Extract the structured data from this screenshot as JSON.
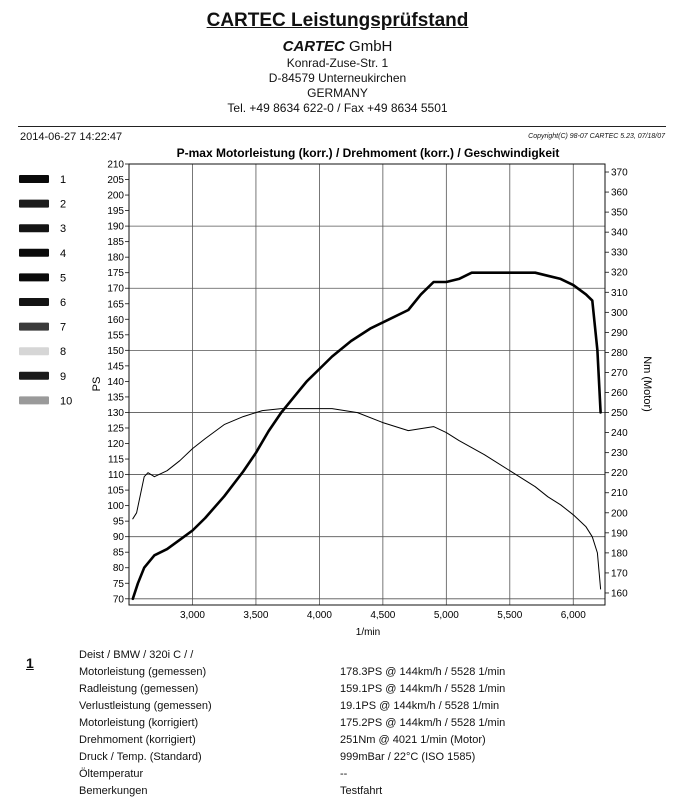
{
  "header": {
    "title": "CARTEC Leistungsprüfstand",
    "company_bold": "CARTEC",
    "company_rest": "GmbH",
    "street": "Konrad-Zuse-Str. 1",
    "city": "D-84579 Unterneukirchen",
    "country": "GERMANY",
    "phone": "Tel. +49 8634  622-0 / Fax +49 8634 5501"
  },
  "meta": {
    "datetime": "2014-06-27 14:22:47",
    "copyright": "Copyright(C) 98-07 CARTEC 5.23, 07/18/07"
  },
  "chart_data": {
    "type": "line",
    "title": "P-max Motorleistung (korr.) / Drehmoment (korr.) / Geschwindigkeit",
    "xlabel": "1/min",
    "ylabel_left": "PS",
    "ylabel_right": "Nm (Motor)",
    "xlim": [
      2500,
      6250
    ],
    "ylim_left": [
      68,
      210
    ],
    "ylim_right": [
      154,
      374
    ],
    "x_ticks": [
      3000,
      3500,
      4000,
      4500,
      5000,
      5500,
      6000
    ],
    "x_tick_labels": [
      "3,000",
      "3,500",
      "4,000",
      "4,500",
      "5,000",
      "5,500",
      "6,000"
    ],
    "y_left_ticks": [
      70,
      75,
      80,
      85,
      90,
      95,
      100,
      105,
      110,
      115,
      120,
      125,
      130,
      135,
      140,
      145,
      150,
      155,
      160,
      165,
      170,
      175,
      180,
      185,
      190,
      195,
      200,
      205,
      210
    ],
    "y_right_ticks": [
      160,
      170,
      180,
      190,
      200,
      210,
      220,
      230,
      240,
      250,
      260,
      270,
      280,
      290,
      300,
      310,
      320,
      330,
      340,
      350,
      360,
      370
    ],
    "legend": [
      {
        "label": "1",
        "color": "#0a0a0a"
      },
      {
        "label": "2",
        "color": "#1c1c1c"
      },
      {
        "label": "3",
        "color": "#141414"
      },
      {
        "label": "4",
        "color": "#0a0a0a"
      },
      {
        "label": "5",
        "color": "#0a0a0a"
      },
      {
        "label": "6",
        "color": "#141414"
      },
      {
        "label": "7",
        "color": "#3a3a3a"
      },
      {
        "label": "8",
        "color": "#d6d6d6"
      },
      {
        "label": "9",
        "color": "#1a1a1a"
      },
      {
        "label": "10",
        "color": "#9a9a9a"
      }
    ],
    "series": [
      {
        "name": "Motorleistung (korr.)",
        "axis": "left",
        "x": [
          2530,
          2570,
          2620,
          2700,
          2800,
          2900,
          3000,
          3100,
          3250,
          3400,
          3500,
          3600,
          3700,
          3800,
          3900,
          4000,
          4100,
          4250,
          4400,
          4550,
          4700,
          4800,
          4850,
          4900,
          4950,
          5000,
          5100,
          5200,
          5300,
          5400,
          5500,
          5600,
          5700,
          5800,
          5900,
          6000,
          6100,
          6150,
          6190,
          6215
        ],
        "values": [
          70,
          75,
          80,
          84,
          86,
          89,
          92,
          96,
          103,
          111,
          117,
          124,
          130,
          135,
          140,
          144,
          148,
          153,
          157,
          160,
          163,
          168,
          170,
          172,
          172,
          172,
          173,
          175,
          175,
          175,
          175,
          175,
          175,
          174,
          173,
          171,
          168,
          166,
          150,
          130
        ]
      },
      {
        "name": "Drehmoment (korr.)",
        "axis": "right",
        "x": [
          2530,
          2560,
          2620,
          2650,
          2700,
          2800,
          2900,
          3000,
          3100,
          3250,
          3400,
          3550,
          3700,
          3850,
          4000,
          4100,
          4300,
          4500,
          4700,
          4800,
          4900,
          5000,
          5100,
          5300,
          5500,
          5700,
          5800,
          5900,
          6000,
          6100,
          6150,
          6190,
          6215
        ],
        "values": [
          197,
          200,
          218,
          220,
          218,
          221,
          226,
          232,
          237,
          244,
          248,
          251,
          252,
          252,
          252,
          252,
          250,
          245,
          241,
          242,
          243,
          240,
          236,
          229,
          221,
          213,
          208,
          204,
          199,
          193,
          188,
          180,
          162
        ]
      }
    ],
    "results_no": "1",
    "results": [
      {
        "label": "Deist / BMW / 320i C /  /",
        "value": ""
      },
      {
        "label": "Motorleistung (gemessen)",
        "value": "178.3PS @ 144km/h / 5528 1/min"
      },
      {
        "label": "Radleistung (gemessen)",
        "value": "159.1PS @ 144km/h / 5528 1/min"
      },
      {
        "label": "Verlustleistung (gemessen)",
        "value": "19.1PS @ 144km/h / 5528 1/min"
      },
      {
        "label": "Motorleistung (korrigiert)",
        "value": "175.2PS @ 144km/h / 5528 1/min"
      },
      {
        "label": "Drehmoment (korrigiert)",
        "value": "251Nm @ 4021 1/min (Motor)"
      },
      {
        "label": "Druck / Temp. (Standard)",
        "value": "999mBar / 22°C    (ISO 1585)"
      },
      {
        "label": "Öltemperatur",
        "value": "--"
      },
      {
        "label": "Bemerkungen",
        "value": "Testfahrt"
      }
    ]
  }
}
